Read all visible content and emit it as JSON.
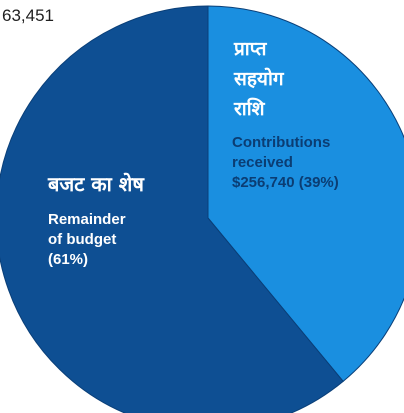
{
  "header_partial_text": "63,451",
  "chart_data": {
    "type": "pie",
    "title": "",
    "slices": [
      {
        "hindi_label_lines": [
          "प्राप्त",
          "सहयोग",
          "राशि"
        ],
        "label_lines": [
          "Contributions",
          "received",
          "$256,740 (39%)"
        ],
        "value": 256740,
        "percent": 39,
        "color": "#1a8fe0"
      },
      {
        "hindi_label_lines": [
          "बजट का शेष"
        ],
        "label_lines": [
          "Remainder",
          "of budget",
          "(61%)"
        ],
        "percent": 61,
        "color": "#0e4f93"
      }
    ]
  },
  "colors": {
    "contributions_slice": "#1a8fe0",
    "remainder_slice": "#0e4f93",
    "contributions_label_text": "#0b3d73",
    "remainder_label_text": "#ffffff",
    "hindi_text": "#ffffff"
  }
}
